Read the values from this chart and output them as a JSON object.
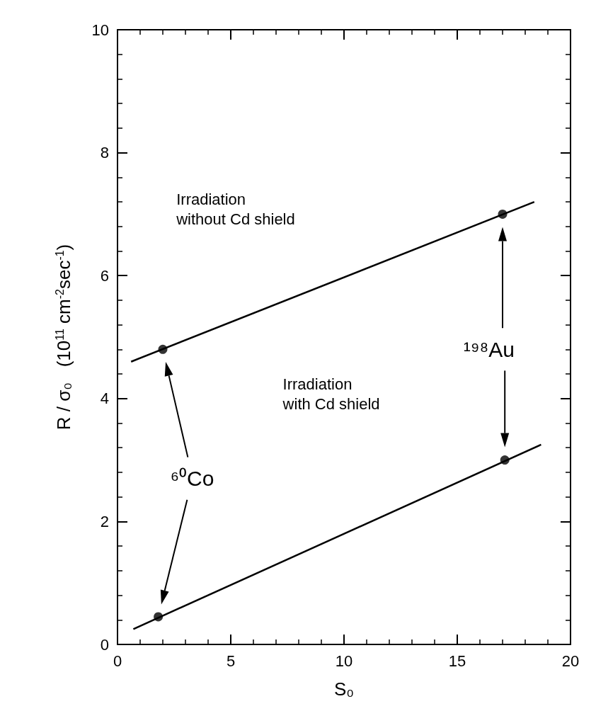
{
  "chart_data": {
    "type": "scatter",
    "xlabel": "S₀",
    "ylabel": "R / σ₀   (10$^{11}$ cm$^{-2}$sec$^{-1}$)",
    "xlim": [
      0,
      20
    ],
    "xticks": [
      0,
      5,
      10,
      15,
      20
    ],
    "ylim": [
      0,
      10
    ],
    "yticks": [
      0,
      2,
      4,
      6,
      8,
      10
    ],
    "grid": false,
    "series": [
      {
        "color": "#000000",
        "marker": "circle",
        "x": [
          2,
          17
        ],
        "values": [
          4.8,
          7.0
        ]
      },
      {
        "color": "#000000",
        "marker": "circle",
        "x": [
          1.8,
          17.1
        ],
        "values": [
          0.45,
          3.0
        ]
      },
      {
        "type": "line",
        "color": "#000000",
        "marker": "none",
        "x": [
          0.6,
          18.4
        ],
        "values": [
          4.6,
          7.2
        ]
      },
      {
        "type": "line",
        "color": "#000000",
        "marker": "none",
        "x": [
          0.7,
          18.7
        ],
        "values": [
          0.25,
          3.25
        ]
      }
    ],
    "annotations": [
      "Irradiation\nwithout Cd shield",
      "Irradiation\nwith Cd shield",
      "⁶⁰Co",
      "¹⁹⁸Au"
    ]
  }
}
